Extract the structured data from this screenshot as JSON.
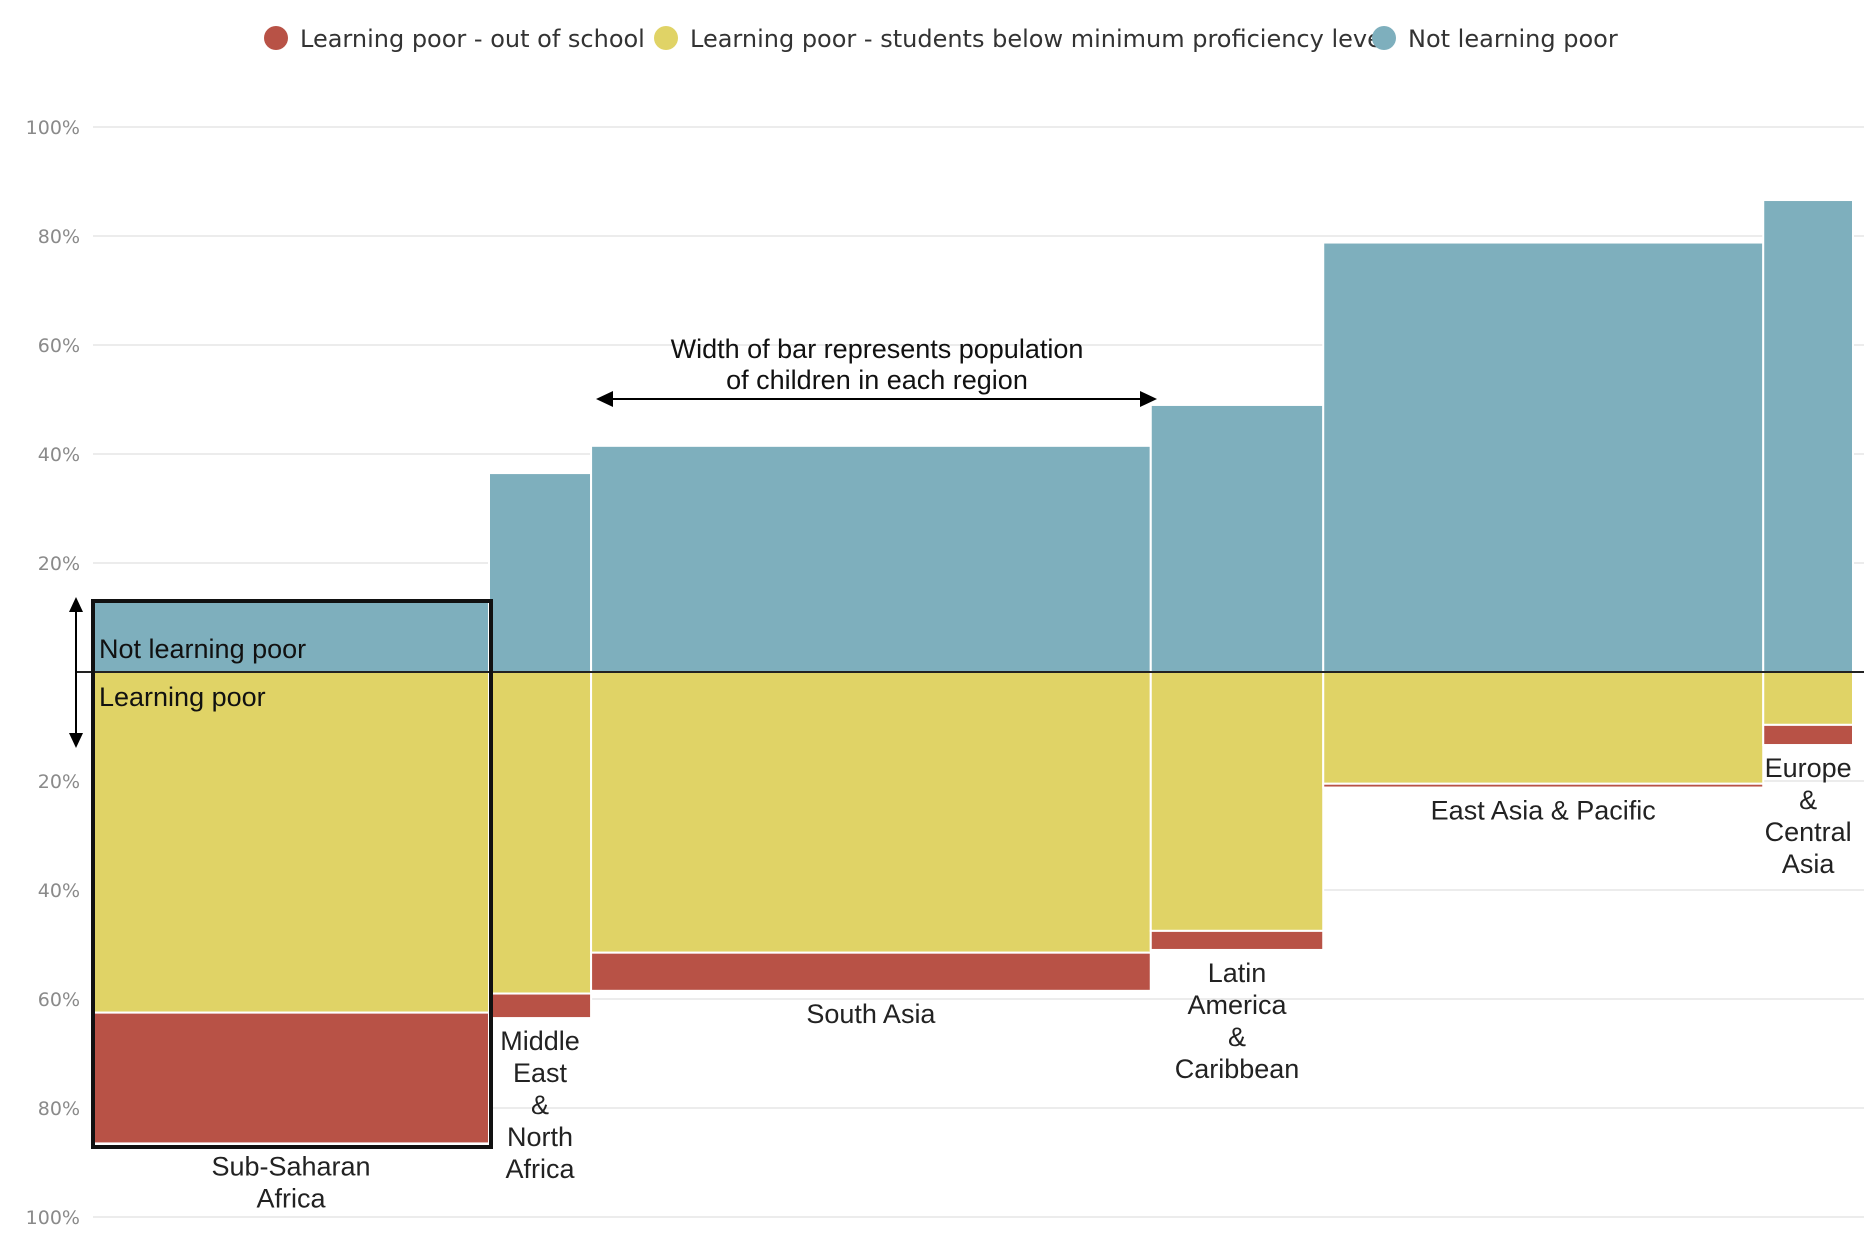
{
  "colors": {
    "out_of_school": "#b85246",
    "below_min": "#e0d366",
    "not_poor": "#7eafbd",
    "grid": "#e6e6e6",
    "axis_text": "#8a8a8a"
  },
  "legend": [
    {
      "key": "out_of_school",
      "label": "Learning poor - out of school"
    },
    {
      "key": "below_min",
      "label": "Learning poor - students below minimum proficiency level"
    },
    {
      "key": "not_poor",
      "label": "Not learning poor"
    }
  ],
  "annotations": {
    "width_note_line1": "Width of bar represents population",
    "width_note_line2": "of children in each region",
    "not_poor_label": "Not learning poor",
    "learning_poor_label": "Learning poor"
  },
  "chart_data": {
    "type": "bar",
    "subtype": "marimekko-diverging",
    "yticks_upper": [
      "100%",
      "80%",
      "60%",
      "40%",
      "20%"
    ],
    "yticks_lower": [
      "20%",
      "40%",
      "60%",
      "80%",
      "100%"
    ],
    "ylim_upper": [
      0,
      100
    ],
    "ylim_lower": [
      0,
      100
    ],
    "grid": true,
    "legend_position": "top",
    "regions": [
      {
        "name": "Sub-Saharan Africa",
        "label_lines": [
          "Sub-Saharan",
          "Africa"
        ],
        "child_population_share": 22.5,
        "not_learning_poor": 13.5,
        "below_min_proficiency": 62.5,
        "out_of_school": 24.0
      },
      {
        "name": "Middle East & North Africa",
        "label_lines": [
          "Middle",
          "East",
          "&",
          "North",
          "Africa"
        ],
        "child_population_share": 5.8,
        "not_learning_poor": 36.5,
        "below_min_proficiency": 59.0,
        "out_of_school": 4.5
      },
      {
        "name": "South Asia",
        "label_lines": [
          "South Asia"
        ],
        "child_population_share": 31.8,
        "not_learning_poor": 41.5,
        "below_min_proficiency": 51.5,
        "out_of_school": 7.0
      },
      {
        "name": "Latin America & Caribbean",
        "label_lines": [
          "Latin",
          "America",
          "&",
          "Caribbean"
        ],
        "child_population_share": 9.8,
        "not_learning_poor": 49.0,
        "below_min_proficiency": 47.5,
        "out_of_school": 3.5
      },
      {
        "name": "East Asia & Pacific",
        "label_lines": [
          "East Asia & Pacific"
        ],
        "child_population_share": 25.0,
        "not_learning_poor": 78.8,
        "below_min_proficiency": 20.5,
        "out_of_school": 0.7
      },
      {
        "name": "Europe & Central Asia",
        "label_lines": [
          "Europe",
          "&",
          "Central",
          "Asia"
        ],
        "child_population_share": 5.1,
        "not_learning_poor": 86.6,
        "below_min_proficiency": 9.7,
        "out_of_school": 3.7
      }
    ]
  }
}
